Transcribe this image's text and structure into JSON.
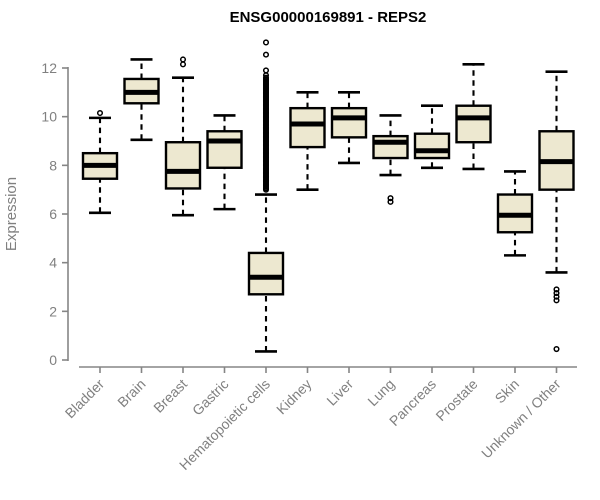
{
  "title": "ENSG00000169891 - REPS2",
  "colors": {
    "box_fill": "#EDE8D0",
    "box_border": "#000000",
    "median": "#000000",
    "whisker": "#000000",
    "outlier": "#000000",
    "axis": "#858585",
    "tick_label": "#808080",
    "title_color": "#000000",
    "background": "#ffffff"
  },
  "y_axis": {
    "label": "Expression",
    "tick_labels": [
      "0",
      "2",
      "4",
      "6",
      "8",
      "10",
      "12"
    ]
  },
  "x_axis": {
    "tick_labels": [
      "Bladder",
      "Brain",
      "Breast",
      "Gastric",
      "Hematopoietic cells",
      "Kidney",
      "Liver",
      "Lung",
      "Pancreas",
      "Prostate",
      "Skin",
      "Unknown / Other"
    ]
  },
  "chart_data": {
    "type": "boxplot",
    "title": "ENSG00000169891 - REPS2",
    "xlabel": "",
    "ylabel": "Expression",
    "ylim": [
      0,
      13.3
    ],
    "yticks": [
      0,
      2,
      4,
      6,
      8,
      10,
      12
    ],
    "grid": false,
    "legend_position": "none",
    "categories": [
      "Bladder",
      "Brain",
      "Breast",
      "Gastric",
      "Hematopoietic cells",
      "Kidney",
      "Liver",
      "Lung",
      "Pancreas",
      "Prostate",
      "Skin",
      "Unknown / Other"
    ],
    "series": [
      {
        "name": "Bladder",
        "low": 6.05,
        "q1": 7.45,
        "median": 8.0,
        "q3": 8.5,
        "high": 9.95,
        "outliers": [
          10.15
        ]
      },
      {
        "name": "Brain",
        "low": 9.05,
        "q1": 10.55,
        "median": 11.0,
        "q3": 11.55,
        "high": 12.35,
        "outliers": []
      },
      {
        "name": "Breast",
        "low": 5.95,
        "q1": 7.05,
        "median": 7.75,
        "q3": 8.95,
        "high": 11.6,
        "outliers": [
          12.15,
          12.35
        ]
      },
      {
        "name": "Gastric",
        "low": 6.2,
        "q1": 7.9,
        "median": 9.0,
        "q3": 9.4,
        "high": 10.05,
        "outliers": []
      },
      {
        "name": "Hematopoietic cells",
        "low": 0.35,
        "q1": 2.7,
        "median": 3.4,
        "q3": 4.4,
        "high": 6.8,
        "outliers": [
          11.7,
          11.9,
          12.55,
          13.05
        ],
        "outlier_band": [
          7.0,
          11.6
        ]
      },
      {
        "name": "Kidney",
        "low": 7.0,
        "q1": 8.75,
        "median": 9.7,
        "q3": 10.35,
        "high": 11.0,
        "outliers": []
      },
      {
        "name": "Liver",
        "low": 8.1,
        "q1": 9.15,
        "median": 9.95,
        "q3": 10.35,
        "high": 11.0,
        "outliers": []
      },
      {
        "name": "Lung",
        "low": 7.6,
        "q1": 8.3,
        "median": 8.95,
        "q3": 9.2,
        "high": 10.05,
        "outliers": [
          6.5,
          6.65
        ]
      },
      {
        "name": "Pancreas",
        "low": 7.9,
        "q1": 8.3,
        "median": 8.6,
        "q3": 9.3,
        "high": 10.45,
        "outliers": []
      },
      {
        "name": "Prostate",
        "low": 7.85,
        "q1": 8.95,
        "median": 9.95,
        "q3": 10.45,
        "high": 12.15,
        "outliers": []
      },
      {
        "name": "Skin",
        "low": 4.3,
        "q1": 5.25,
        "median": 5.95,
        "q3": 6.8,
        "high": 7.75,
        "outliers": []
      },
      {
        "name": "Unknown / Other",
        "low": 3.6,
        "q1": 7.0,
        "median": 8.15,
        "q3": 9.4,
        "high": 11.85,
        "outliers": [
          2.9,
          2.75,
          2.6,
          2.45,
          0.45
        ]
      }
    ]
  }
}
